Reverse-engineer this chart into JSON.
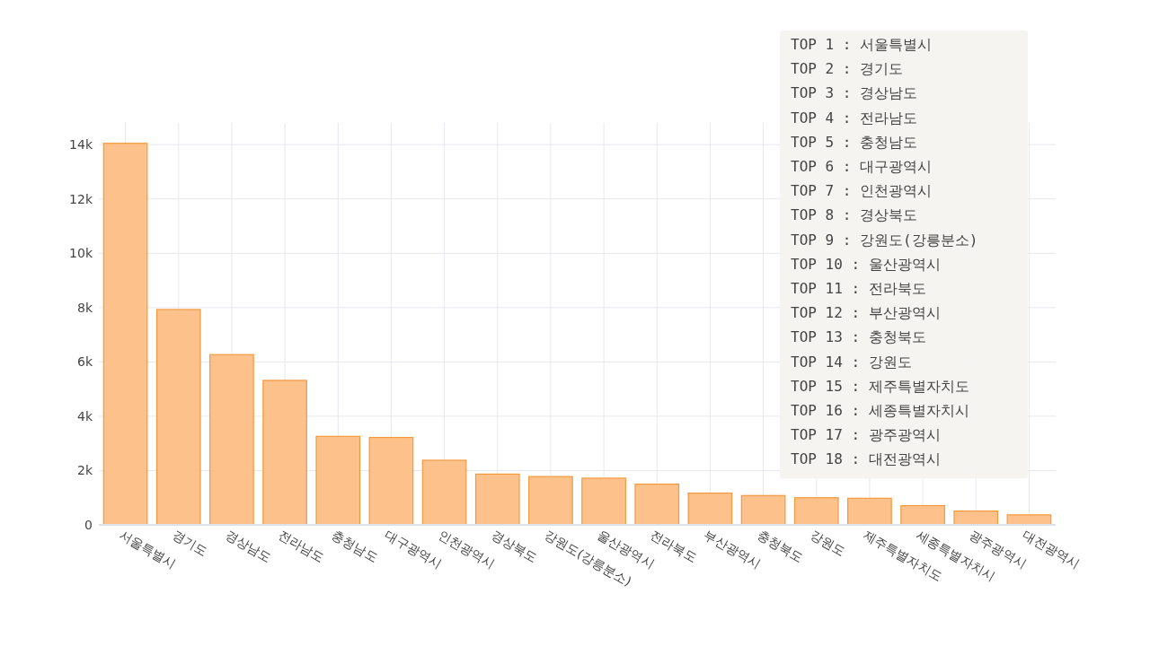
{
  "chart_data": {
    "type": "bar",
    "categories": [
      "서울특별시",
      "경기도",
      "경상남도",
      "전라남도",
      "충청남도",
      "대구광역시",
      "인천광역시",
      "경상북도",
      "강원도(강릉분소)",
      "울산광역시",
      "전라북도",
      "부산광역시",
      "충청북도",
      "강원도",
      "제주특별자치도",
      "세종특별자치시",
      "광주광역시",
      "대전광역시"
    ],
    "values": [
      14050,
      7930,
      6270,
      5320,
      3260,
      3220,
      2380,
      1870,
      1780,
      1720,
      1500,
      1170,
      1080,
      1000,
      980,
      710,
      510,
      370
    ],
    "color": "#fdbe85",
    "ylim": [
      0,
      14800
    ],
    "yticks": [
      0,
      {
        "value": 2000,
        "label": "2k"
      },
      {
        "value": 4000,
        "label": "4k"
      },
      {
        "value": 6000,
        "label": "6k"
      },
      {
        "value": 8000,
        "label": "8k"
      },
      {
        "value": 10000,
        "label": "10k"
      },
      {
        "value": 12000,
        "label": "12k"
      },
      {
        "value": 14000,
        "label": "14k"
      }
    ],
    "grid": true,
    "annotations": [
      "TOP 1 : 서울특별시",
      "TOP 2 : 경기도",
      "TOP 3 : 경상남도",
      "TOP 4 : 전라남도",
      "TOP 5 : 충청남도",
      "TOP 6 : 대구광역시",
      "TOP 7 : 인천광역시",
      "TOP 8 : 경상북도",
      "TOP 9 : 강원도(강릉분소)",
      "TOP 10 : 울산광역시",
      "TOP 11 : 전라북도",
      "TOP 12 : 부산광역시",
      "TOP 13 : 충청북도",
      "TOP 14 : 강원도",
      "TOP 15 : 제주특별자치도",
      "TOP 16 : 세종특별자치시",
      "TOP 17 : 광주광역시",
      "TOP 18 : 대전광역시"
    ]
  }
}
